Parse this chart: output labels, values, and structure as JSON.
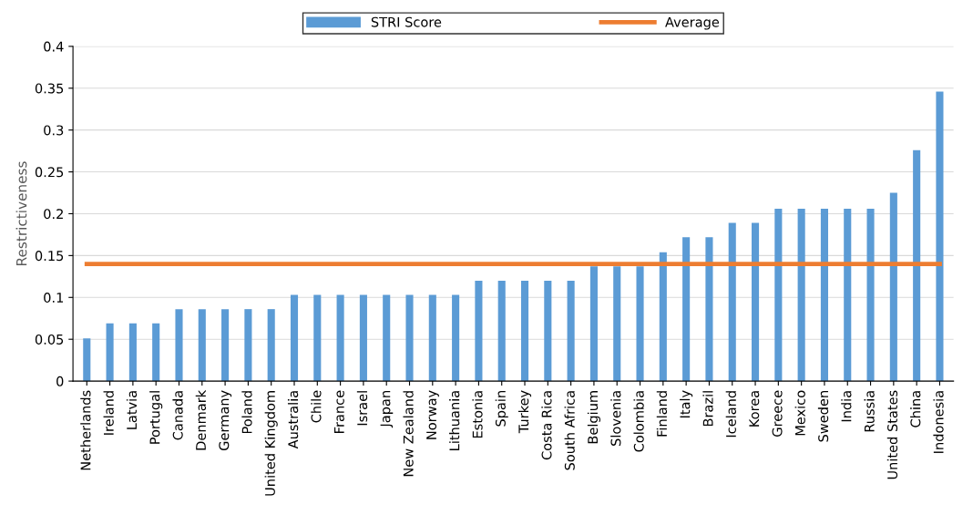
{
  "chart_data": {
    "type": "bar",
    "ylabel": "Restrictiveness",
    "categories": [
      "Netherlands",
      "Ireland",
      "Latvia",
      "Portugal",
      "Canada",
      "Denmark",
      "Germany",
      "Poland",
      "United Kingdom",
      "Australia",
      "Chile",
      "France",
      "Israel",
      "Japan",
      "New Zealand",
      "Norway",
      "Lithuania",
      "Estonia",
      "Spain",
      "Turkey",
      "Costa Rica",
      "South Africa",
      "Belgium",
      "Slovenia",
      "Colombia",
      "Finland",
      "Italy",
      "Brazil",
      "Iceland",
      "Korea",
      "Greece",
      "Mexico",
      "Sweden",
      "India",
      "Russia",
      "United States",
      "China",
      "Indonesia"
    ],
    "series": [
      {
        "name": "STRI Score",
        "color": "#5b9bd5",
        "values": [
          0.051,
          0.069,
          0.069,
          0.069,
          0.086,
          0.086,
          0.086,
          0.086,
          0.086,
          0.103,
          0.103,
          0.103,
          0.103,
          0.103,
          0.103,
          0.103,
          0.103,
          0.12,
          0.12,
          0.12,
          0.12,
          0.12,
          0.137,
          0.137,
          0.137,
          0.154,
          0.172,
          0.172,
          0.189,
          0.189,
          0.206,
          0.206,
          0.206,
          0.206,
          0.206,
          0.225,
          0.276,
          0.346
        ]
      },
      {
        "name": "Average",
        "type": "line",
        "color": "#ed7d31",
        "values": [
          0.14,
          0.14,
          0.14,
          0.14,
          0.14,
          0.14,
          0.14,
          0.14,
          0.14,
          0.14,
          0.14,
          0.14,
          0.14,
          0.14,
          0.14,
          0.14,
          0.14,
          0.14,
          0.14,
          0.14,
          0.14,
          0.14,
          0.14,
          0.14,
          0.14,
          0.14,
          0.14,
          0.14,
          0.14,
          0.14,
          0.14,
          0.14,
          0.14,
          0.14,
          0.14,
          0.14,
          0.14,
          0.14
        ]
      }
    ],
    "ylim": [
      0,
      0.4
    ],
    "yticks": [
      0,
      0.05,
      0.1,
      0.15,
      0.2,
      0.25,
      0.3,
      0.35,
      0.4
    ],
    "grid": "y",
    "legend": "top"
  }
}
